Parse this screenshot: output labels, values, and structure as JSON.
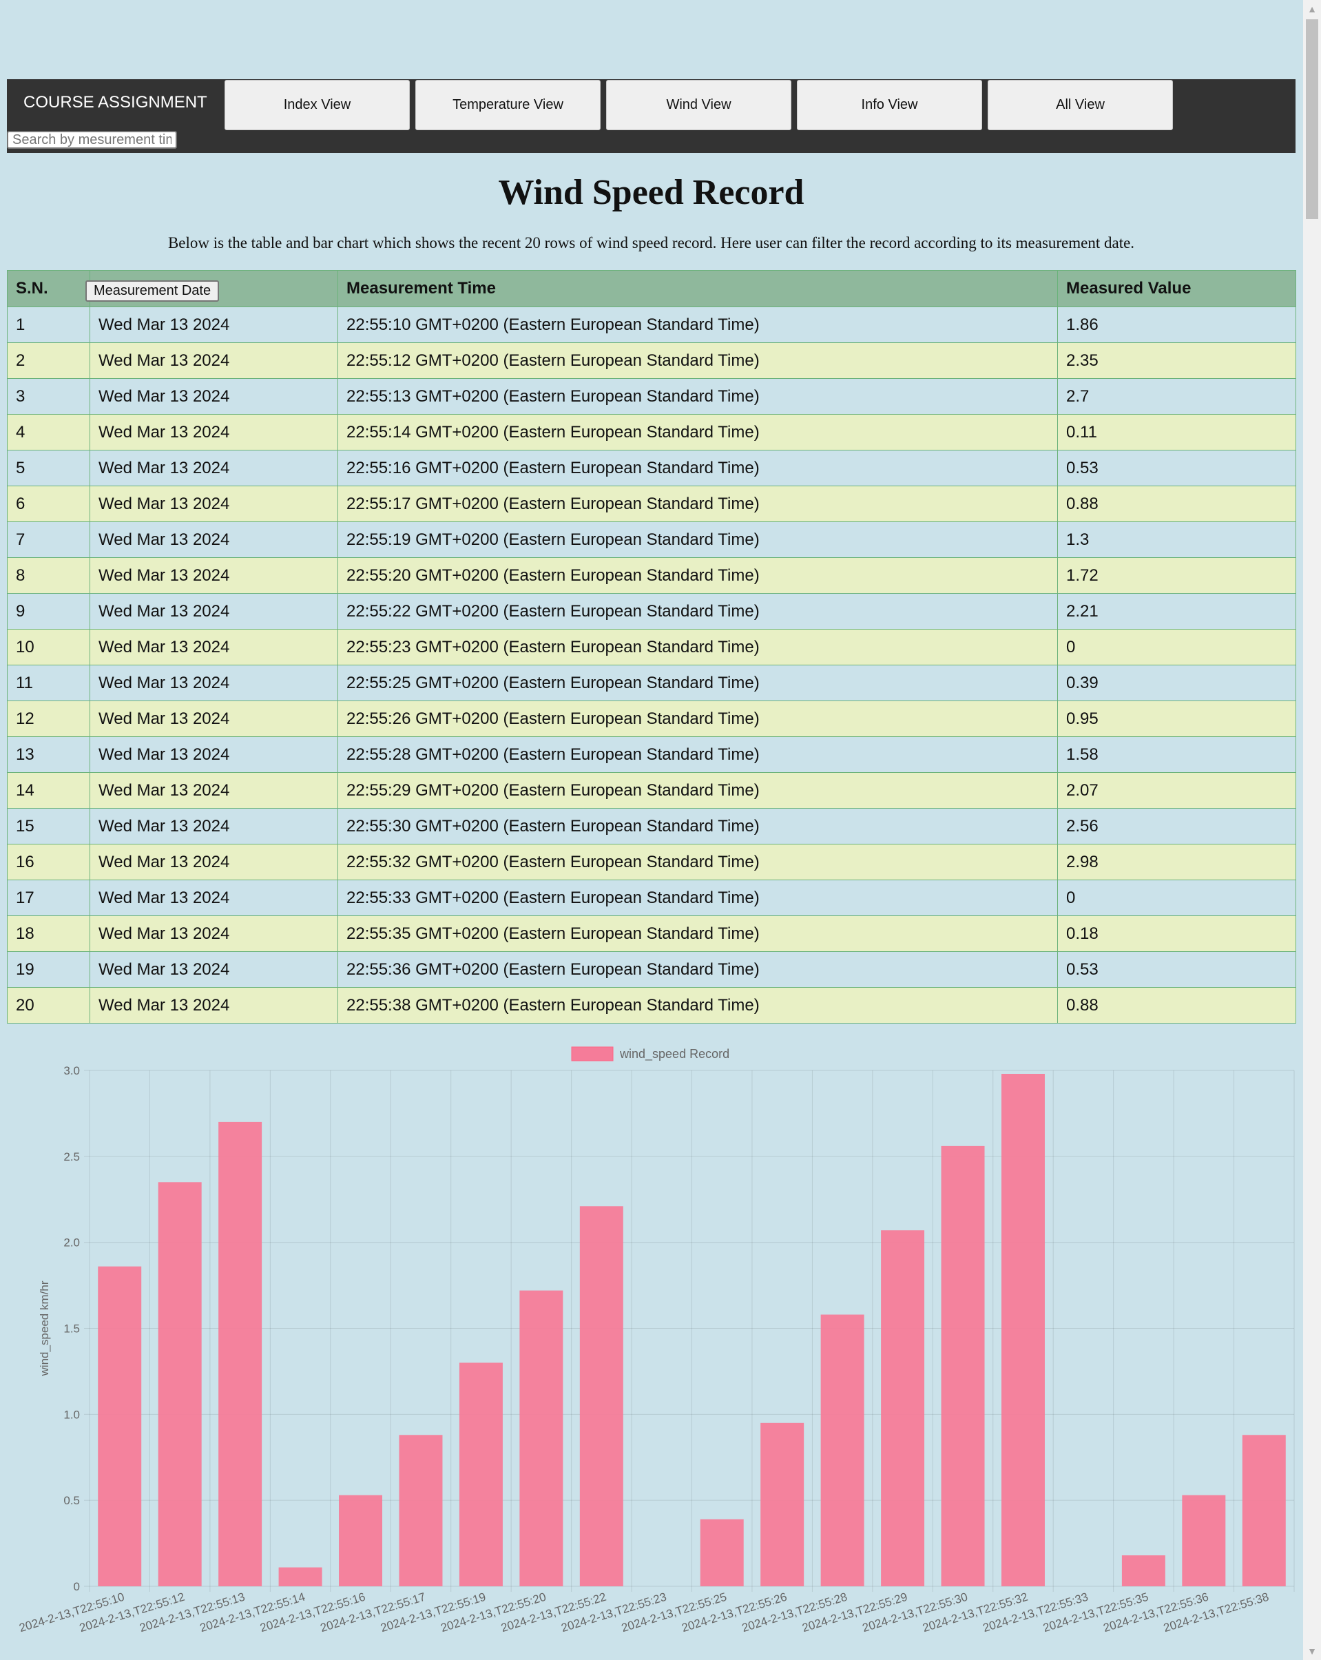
{
  "nav": {
    "brand": "COURSE ASSIGNMENT",
    "search_placeholder": "Search by mesurement time",
    "buttons": [
      "Index View",
      "Temperature View",
      "Wind View",
      "Info View",
      "All View"
    ]
  },
  "page": {
    "title": "Wind Speed Record",
    "description": "Below is the table and bar chart which shows the recent 20 rows of wind speed record. Here user can filter the record according to its measurement date."
  },
  "table": {
    "headers": [
      "S.N.",
      "Measurement Date",
      "Measurement Time",
      "Measured Value"
    ],
    "rows": [
      [
        "1",
        "Wed Mar 13 2024",
        "22:55:10 GMT+0200 (Eastern European Standard Time)",
        "1.86"
      ],
      [
        "2",
        "Wed Mar 13 2024",
        "22:55:12 GMT+0200 (Eastern European Standard Time)",
        "2.35"
      ],
      [
        "3",
        "Wed Mar 13 2024",
        "22:55:13 GMT+0200 (Eastern European Standard Time)",
        "2.7"
      ],
      [
        "4",
        "Wed Mar 13 2024",
        "22:55:14 GMT+0200 (Eastern European Standard Time)",
        "0.11"
      ],
      [
        "5",
        "Wed Mar 13 2024",
        "22:55:16 GMT+0200 (Eastern European Standard Time)",
        "0.53"
      ],
      [
        "6",
        "Wed Mar 13 2024",
        "22:55:17 GMT+0200 (Eastern European Standard Time)",
        "0.88"
      ],
      [
        "7",
        "Wed Mar 13 2024",
        "22:55:19 GMT+0200 (Eastern European Standard Time)",
        "1.3"
      ],
      [
        "8",
        "Wed Mar 13 2024",
        "22:55:20 GMT+0200 (Eastern European Standard Time)",
        "1.72"
      ],
      [
        "9",
        "Wed Mar 13 2024",
        "22:55:22 GMT+0200 (Eastern European Standard Time)",
        "2.21"
      ],
      [
        "10",
        "Wed Mar 13 2024",
        "22:55:23 GMT+0200 (Eastern European Standard Time)",
        "0"
      ],
      [
        "11",
        "Wed Mar 13 2024",
        "22:55:25 GMT+0200 (Eastern European Standard Time)",
        "0.39"
      ],
      [
        "12",
        "Wed Mar 13 2024",
        "22:55:26 GMT+0200 (Eastern European Standard Time)",
        "0.95"
      ],
      [
        "13",
        "Wed Mar 13 2024",
        "22:55:28 GMT+0200 (Eastern European Standard Time)",
        "1.58"
      ],
      [
        "14",
        "Wed Mar 13 2024",
        "22:55:29 GMT+0200 (Eastern European Standard Time)",
        "2.07"
      ],
      [
        "15",
        "Wed Mar 13 2024",
        "22:55:30 GMT+0200 (Eastern European Standard Time)",
        "2.56"
      ],
      [
        "16",
        "Wed Mar 13 2024",
        "22:55:32 GMT+0200 (Eastern European Standard Time)",
        "2.98"
      ],
      [
        "17",
        "Wed Mar 13 2024",
        "22:55:33 GMT+0200 (Eastern European Standard Time)",
        "0"
      ],
      [
        "18",
        "Wed Mar 13 2024",
        "22:55:35 GMT+0200 (Eastern European Standard Time)",
        "0.18"
      ],
      [
        "19",
        "Wed Mar 13 2024",
        "22:55:36 GMT+0200 (Eastern European Standard Time)",
        "0.53"
      ],
      [
        "20",
        "Wed Mar 13 2024",
        "22:55:38 GMT+0200 (Eastern European Standard Time)",
        "0.88"
      ]
    ]
  },
  "colors": {
    "nav_bg": "#333333",
    "table_header": "#8fb89c",
    "row_odd": "#cbe2ea",
    "row_even": "#e8f0c5",
    "bar_fill": "#f57c99",
    "bar_stroke": "#ff6384"
  },
  "chart_data": {
    "type": "bar",
    "legend": [
      "wind_speed Record"
    ],
    "legend_position": "top-center",
    "ylabel": "wind_speed km/hr",
    "xlabel": "",
    "ylim": [
      0,
      3.0
    ],
    "yticks": [
      "0",
      "0.5",
      "1.0",
      "1.5",
      "2.0",
      "2.5",
      "3.0"
    ],
    "grid": true,
    "categories": [
      "2024-2-13,T22:55:10",
      "2024-2-13,T22:55:12",
      "2024-2-13,T22:55:13",
      "2024-2-13,T22:55:14",
      "2024-2-13,T22:55:16",
      "2024-2-13,T22:55:17",
      "2024-2-13,T22:55:19",
      "2024-2-13,T22:55:20",
      "2024-2-13,T22:55:22",
      "2024-2-13,T22:55:23",
      "2024-2-13,T22:55:25",
      "2024-2-13,T22:55:26",
      "2024-2-13,T22:55:28",
      "2024-2-13,T22:55:29",
      "2024-2-13,T22:55:30",
      "2024-2-13,T22:55:32",
      "2024-2-13,T22:55:33",
      "2024-2-13,T22:55:35",
      "2024-2-13,T22:55:36",
      "2024-2-13,T22:55:38"
    ],
    "series": [
      {
        "name": "wind_speed Record",
        "values": [
          1.86,
          2.35,
          2.7,
          0.11,
          0.53,
          0.88,
          1.3,
          1.72,
          2.21,
          0,
          0.39,
          0.95,
          1.58,
          2.07,
          2.56,
          2.98,
          0,
          0.18,
          0.53,
          0.88
        ]
      }
    ]
  }
}
